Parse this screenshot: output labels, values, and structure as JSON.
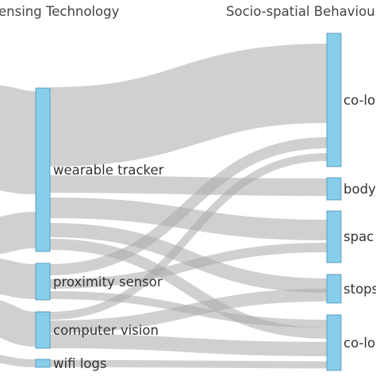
{
  "columns": {
    "left_heading": "ensing Technology",
    "right_heading": "Socio-spatial Behaviou"
  },
  "nodes": {
    "wearable_tracker": "wearable tracker",
    "proximity_sensor": "proximity sensor",
    "computer_vision": "computer vision",
    "wifi_logs": "wifi logs",
    "r1": "co-lo",
    "r2": "body",
    "r3": "spac",
    "r4": "stops",
    "r5": "co-lo"
  },
  "colors": {
    "node_fill": "#87ceeb",
    "node_stroke": "#4a8fb4",
    "flow": "#aaaaaa"
  }
}
